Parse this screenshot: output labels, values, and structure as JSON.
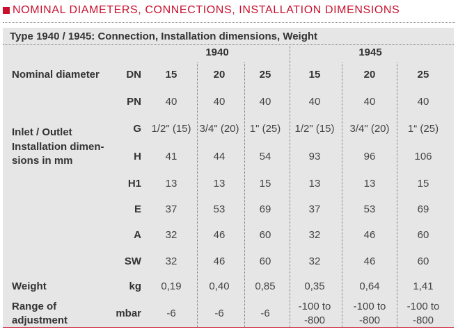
{
  "section": {
    "title": "NOMINAL DIAMETERS, CONNECTIONS, INSTALLATION DIMENSIONS"
  },
  "table": {
    "caption": "Type 1940 / 1945: Connection, Installation dimensions, Weight",
    "groups": [
      "1940",
      "1945"
    ],
    "labels": {
      "nominal_diameter": "Nominal diameter",
      "inlet_outlet": "Inlet / Outlet",
      "installation_1": "Installation dimen-",
      "installation_2": "sions in mm",
      "weight": "Weight",
      "range_1": "Range of",
      "range_2": "adjustment"
    },
    "rows": [
      {
        "symbol": "DN",
        "values": [
          "15",
          "20",
          "25",
          "15",
          "20",
          "25"
        ]
      },
      {
        "symbol": "PN",
        "values": [
          "40",
          "40",
          "40",
          "40",
          "40",
          "40"
        ]
      },
      {
        "symbol": "G",
        "values": [
          "1/2\" (15)",
          "3/4\" (20)",
          "1\" (25)",
          "1/2\" (15)",
          "3/4\" (20)",
          "1“ (25)"
        ]
      },
      {
        "symbol": "H",
        "values": [
          "41",
          "44",
          "54",
          "93",
          "96",
          "106"
        ]
      },
      {
        "symbol": "H1",
        "values": [
          "13",
          "13",
          "15",
          "13",
          "13",
          "15"
        ]
      },
      {
        "symbol": "E",
        "values": [
          "37",
          "53",
          "69",
          "37",
          "53",
          "69"
        ]
      },
      {
        "symbol": "A",
        "values": [
          "32",
          "46",
          "60",
          "32",
          "46",
          "60"
        ]
      },
      {
        "symbol": "SW",
        "values": [
          "32",
          "46",
          "60",
          "32",
          "46",
          "60"
        ]
      },
      {
        "symbol": "kg",
        "values": [
          "0,19",
          "0,40",
          "0,85",
          "0,35",
          "0,64",
          "1,41"
        ]
      }
    ],
    "range_row": {
      "symbol": "mbar",
      "values_line1": [
        "-6",
        "-6",
        "-6",
        "-100 to",
        "-100 to",
        "-100 to"
      ],
      "values_line2": [
        "",
        "",
        "",
        "-800",
        "-800",
        "-800"
      ]
    }
  },
  "colors": {
    "accent": "#c8102e",
    "panel_background": "#e6e6e7"
  }
}
